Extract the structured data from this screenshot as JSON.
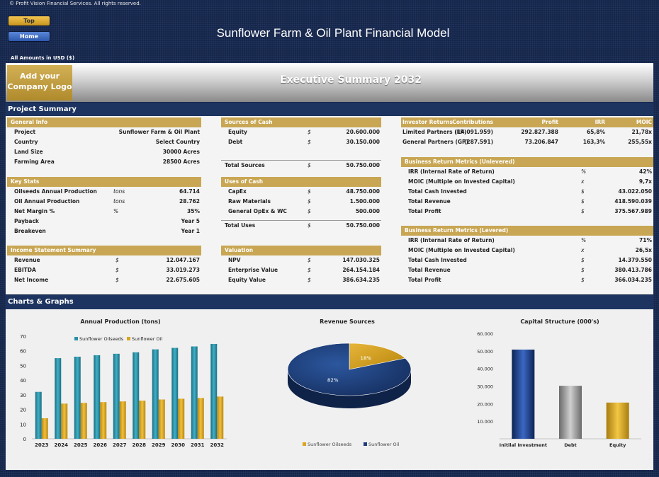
{
  "copyright": "© Profit Vision Financial Services. All rights reserved.",
  "nav": {
    "top_label": "Top",
    "home_label": "Home"
  },
  "main_title": "Sunflower Farm & Oil Plant Financial Model",
  "amounts_note": "All Amounts in  USD ($)",
  "logo_text": "Add your Company Logo",
  "exec_title": "Executive Summary 2032",
  "sections": {
    "project_summary": "Project Summary",
    "charts": "Charts & Graphs"
  },
  "general_info": {
    "header": "General Info",
    "rows": [
      {
        "label": "Project",
        "value": "Sunflower Farm & Oil Plant"
      },
      {
        "label": "Country",
        "value": "Select Country"
      },
      {
        "label": "Land Size",
        "value": "30000 Acres"
      },
      {
        "label": "Farming Area",
        "value": "28500 Acres"
      }
    ]
  },
  "key_stats": {
    "header": "Key Stats",
    "rows": [
      {
        "label": "Oilseeds Annual Production",
        "unit": "tons",
        "value": "64.714"
      },
      {
        "label": "Oil Annual Production",
        "unit": "tons",
        "value": "28.762"
      },
      {
        "label": "Net Margin %",
        "unit": "%",
        "value": "35%"
      },
      {
        "label": "Payback",
        "unit": "",
        "value": "Year 5"
      },
      {
        "label": "Breakeven",
        "unit": "",
        "value": "Year 1"
      }
    ]
  },
  "income_statement": {
    "header": "Income Statement Summary",
    "rows": [
      {
        "label": "Revenue",
        "unit": "$",
        "value": "12.047.167"
      },
      {
        "label": "EBITDA",
        "unit": "$",
        "value": "33.019.273"
      },
      {
        "label": "Net Income",
        "unit": "$",
        "value": "22.675.605"
      }
    ]
  },
  "sources_of_cash": {
    "header": "Sources of Cash",
    "rows": [
      {
        "label": "Equity",
        "unit": "$",
        "value": "20.600.000"
      },
      {
        "label": "Debt",
        "unit": "$",
        "value": "30.150.000"
      }
    ],
    "total": {
      "label": "Total Sources",
      "unit": "$",
      "value": "50.750.000"
    }
  },
  "uses_of_cash": {
    "header": "Uses of Cash",
    "rows": [
      {
        "label": "CapEx",
        "unit": "$",
        "value": "48.750.000"
      },
      {
        "label": "Raw Materials",
        "unit": "$",
        "value": "1.500.000"
      },
      {
        "label": "General OpEx & WC",
        "unit": "$",
        "value": "500.000"
      }
    ],
    "total": {
      "label": "Total Uses",
      "unit": "$",
      "value": "50.750.000"
    }
  },
  "valuation": {
    "header": "Valuation",
    "rows": [
      {
        "label": "NPV",
        "unit": "$",
        "value": "147.030.325"
      },
      {
        "label": "Enterprise Value",
        "unit": "$",
        "value": "264.154.184"
      },
      {
        "label": "Equity Value",
        "unit": "$",
        "value": "386.634.235"
      }
    ]
  },
  "investor_returns": {
    "headers": [
      "Investor Returns",
      "Contributions",
      "Profit",
      "IRR",
      "MOIC"
    ],
    "rows": [
      [
        "Limited Partners (LP)",
        "(14.091.959)",
        "292.827.388",
        "65,8%",
        "21,78x"
      ],
      [
        "General Partners (GP)",
        "(287.591)",
        "73.206.847",
        "163,3%",
        "255,55x"
      ]
    ]
  },
  "unlevered": {
    "header": "Business Return Metrics (Unlevered)",
    "rows": [
      {
        "label": "IRR (Internal Rate of Return)",
        "unit": "%",
        "value": "42%"
      },
      {
        "label": "MOIC (Multiple on Invested Capital)",
        "unit": "x",
        "value": "9,7x"
      },
      {
        "label": "Total Cash Invested",
        "unit": "$",
        "value": "43.022.050"
      },
      {
        "label": "Total Revenue",
        "unit": "$",
        "value": "418.590.039"
      },
      {
        "label": "Total Profit",
        "unit": "$",
        "value": "375.567.989"
      }
    ]
  },
  "levered": {
    "header": "Business Return Metrics (Levered)",
    "rows": [
      {
        "label": "IRR (Internal Rate of Return)",
        "unit": "%",
        "value": "71%"
      },
      {
        "label": "MOIC (Multiple on Invested Capital)",
        "unit": "x",
        "value": "26,5x"
      },
      {
        "label": "Total Cash Invested",
        "unit": "$",
        "value": "14.379.550"
      },
      {
        "label": "Total Revenue",
        "unit": "$",
        "value": "380.413.786"
      },
      {
        "label": "Total Profit",
        "unit": "$",
        "value": "366.034.235"
      }
    ]
  },
  "colors": {
    "navy": "#1d3461",
    "gold": "#c8a653",
    "teal": "#2a8fa6",
    "bar_gold": "#d9a521",
    "pie_blue": "#1e3c7a",
    "grey": "#8c8c8c"
  },
  "chart_data": [
    {
      "type": "bar",
      "title": "Annual Production (tons)",
      "categories": [
        "2023",
        "2024",
        "2025",
        "2026",
        "2027",
        "2028",
        "2029",
        "2030",
        "2031",
        "2032"
      ],
      "series": [
        {
          "name": "Sunflower Oilseeds",
          "values": [
            32,
            55,
            56,
            57,
            58,
            59,
            61,
            62,
            63,
            64.7
          ]
        },
        {
          "name": "Sunflower Oil",
          "values": [
            14,
            24,
            24.5,
            25,
            25.5,
            26,
            26.8,
            27.3,
            27.8,
            28.8
          ]
        }
      ],
      "yticks": [
        "0",
        "10",
        "20",
        "30",
        "40",
        "50",
        "60",
        "70"
      ],
      "ylim": [
        0,
        70
      ]
    },
    {
      "type": "pie",
      "title": "Revenue Sources",
      "slices": [
        {
          "name": "Sunflower Oilseeds",
          "value": 18,
          "label": "18%"
        },
        {
          "name": "Sunflower Oil",
          "value": 82,
          "label": "82%"
        }
      ]
    },
    {
      "type": "bar",
      "title": "Capital Structure (000's)",
      "categories": [
        "Initilal Investment",
        "Debt",
        "Equity"
      ],
      "values": [
        50750,
        30150,
        20600
      ],
      "yticks": [
        "10.000",
        "20.000",
        "30.000",
        "40.000",
        "50.000",
        "60.000"
      ],
      "ylim": [
        0,
        60000
      ]
    }
  ]
}
